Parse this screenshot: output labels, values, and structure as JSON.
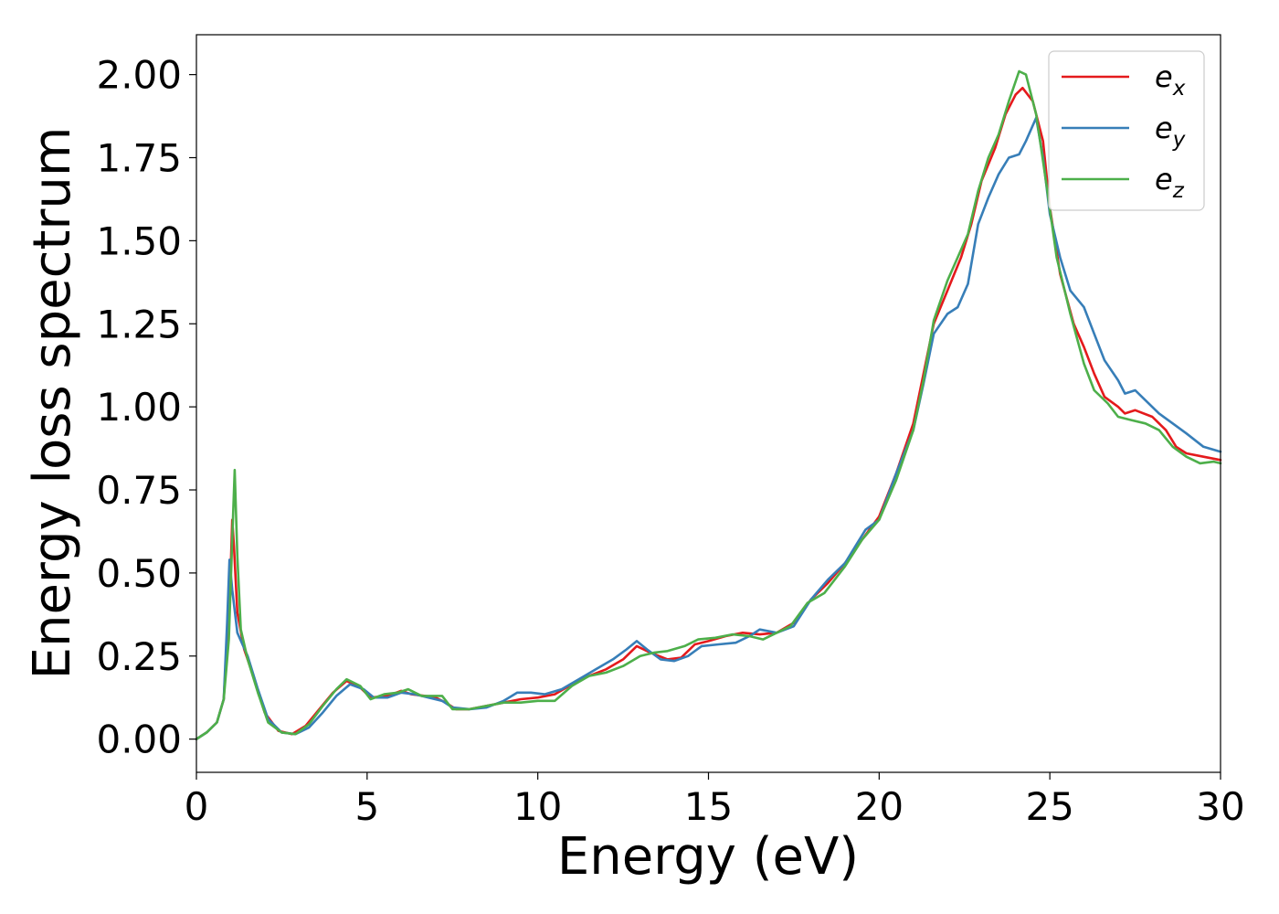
{
  "chart_data": {
    "type": "line",
    "xlabel": "Energy (eV)",
    "ylabel": "Energy loss spectrum",
    "xlim": [
      0,
      30
    ],
    "ylim": [
      -0.1,
      2.12
    ],
    "xticks": [
      0,
      5,
      10,
      15,
      20,
      25,
      30
    ],
    "xtick_labels": [
      "0",
      "5",
      "10",
      "15",
      "20",
      "25",
      "30"
    ],
    "yticks": [
      0,
      0.25,
      0.5,
      0.75,
      1.0,
      1.25,
      1.5,
      1.75,
      2.0
    ],
    "ytick_labels": [
      "0.00",
      "0.25",
      "0.50",
      "0.75",
      "1.00",
      "1.25",
      "1.50",
      "1.75",
      "2.00"
    ],
    "grid": false,
    "legend_position": "top-right",
    "series": [
      {
        "name": "e_x",
        "label_base": "e",
        "label_sub": "x",
        "color": "#e41a1c",
        "points": [
          [
            0,
            0
          ],
          [
            0.3,
            0.02
          ],
          [
            0.6,
            0.05
          ],
          [
            0.8,
            0.12
          ],
          [
            0.9,
            0.3
          ],
          [
            1.0,
            0.5
          ],
          [
            1.05,
            0.66
          ],
          [
            1.1,
            0.58
          ],
          [
            1.2,
            0.38
          ],
          [
            1.4,
            0.27
          ],
          [
            1.7,
            0.18
          ],
          [
            2.0,
            0.08
          ],
          [
            2.4,
            0.025
          ],
          [
            2.8,
            0.015
          ],
          [
            3.2,
            0.04
          ],
          [
            3.6,
            0.09
          ],
          [
            4.0,
            0.14
          ],
          [
            4.4,
            0.175
          ],
          [
            4.8,
            0.155
          ],
          [
            5.1,
            0.125
          ],
          [
            5.6,
            0.13
          ],
          [
            6.0,
            0.145
          ],
          [
            6.3,
            0.135
          ],
          [
            6.7,
            0.13
          ],
          [
            7.0,
            0.125
          ],
          [
            7.3,
            0.11
          ],
          [
            7.6,
            0.09
          ],
          [
            8.0,
            0.09
          ],
          [
            8.5,
            0.1
          ],
          [
            9.0,
            0.11
          ],
          [
            9.5,
            0.12
          ],
          [
            10.0,
            0.125
          ],
          [
            10.5,
            0.135
          ],
          [
            11.0,
            0.165
          ],
          [
            11.5,
            0.19
          ],
          [
            12.0,
            0.21
          ],
          [
            12.5,
            0.24
          ],
          [
            12.9,
            0.28
          ],
          [
            13.3,
            0.26
          ],
          [
            13.8,
            0.24
          ],
          [
            14.2,
            0.245
          ],
          [
            14.6,
            0.285
          ],
          [
            15.0,
            0.295
          ],
          [
            15.5,
            0.31
          ],
          [
            16.0,
            0.32
          ],
          [
            16.5,
            0.315
          ],
          [
            17.0,
            0.32
          ],
          [
            17.5,
            0.35
          ],
          [
            18.0,
            0.42
          ],
          [
            18.5,
            0.47
          ],
          [
            19.0,
            0.53
          ],
          [
            19.5,
            0.6
          ],
          [
            20.0,
            0.67
          ],
          [
            20.5,
            0.8
          ],
          [
            21.0,
            0.95
          ],
          [
            21.3,
            1.1
          ],
          [
            21.6,
            1.25
          ],
          [
            22.0,
            1.35
          ],
          [
            22.4,
            1.45
          ],
          [
            22.7,
            1.55
          ],
          [
            23.0,
            1.68
          ],
          [
            23.4,
            1.78
          ],
          [
            23.7,
            1.88
          ],
          [
            24.0,
            1.94
          ],
          [
            24.2,
            1.96
          ],
          [
            24.5,
            1.92
          ],
          [
            24.8,
            1.8
          ],
          [
            25.0,
            1.6
          ],
          [
            25.3,
            1.4
          ],
          [
            25.7,
            1.25
          ],
          [
            26.0,
            1.18
          ],
          [
            26.3,
            1.1
          ],
          [
            26.6,
            1.03
          ],
          [
            27.0,
            1.0
          ],
          [
            27.2,
            0.98
          ],
          [
            27.5,
            0.99
          ],
          [
            28.0,
            0.97
          ],
          [
            28.4,
            0.93
          ],
          [
            28.7,
            0.88
          ],
          [
            29.0,
            0.86
          ],
          [
            29.5,
            0.85
          ],
          [
            30.0,
            0.84
          ]
        ]
      },
      {
        "name": "e_y",
        "label_base": "e",
        "label_sub": "y",
        "color": "#377eb8",
        "points": [
          [
            0,
            0
          ],
          [
            0.3,
            0.02
          ],
          [
            0.6,
            0.05
          ],
          [
            0.8,
            0.12
          ],
          [
            0.9,
            0.35
          ],
          [
            0.97,
            0.54
          ],
          [
            1.05,
            0.45
          ],
          [
            1.2,
            0.32
          ],
          [
            1.5,
            0.25
          ],
          [
            1.8,
            0.15
          ],
          [
            2.1,
            0.06
          ],
          [
            2.5,
            0.02
          ],
          [
            2.9,
            0.015
          ],
          [
            3.3,
            0.035
          ],
          [
            3.7,
            0.08
          ],
          [
            4.1,
            0.13
          ],
          [
            4.5,
            0.165
          ],
          [
            4.9,
            0.15
          ],
          [
            5.2,
            0.125
          ],
          [
            5.6,
            0.125
          ],
          [
            6.0,
            0.14
          ],
          [
            6.4,
            0.135
          ],
          [
            6.8,
            0.125
          ],
          [
            7.2,
            0.115
          ],
          [
            7.5,
            0.095
          ],
          [
            8.0,
            0.09
          ],
          [
            8.5,
            0.095
          ],
          [
            9.0,
            0.115
          ],
          [
            9.4,
            0.14
          ],
          [
            9.8,
            0.14
          ],
          [
            10.2,
            0.135
          ],
          [
            10.7,
            0.15
          ],
          [
            11.2,
            0.18
          ],
          [
            11.7,
            0.21
          ],
          [
            12.2,
            0.24
          ],
          [
            12.6,
            0.27
          ],
          [
            12.9,
            0.295
          ],
          [
            13.2,
            0.27
          ],
          [
            13.6,
            0.24
          ],
          [
            14.0,
            0.235
          ],
          [
            14.4,
            0.25
          ],
          [
            14.8,
            0.28
          ],
          [
            15.3,
            0.285
          ],
          [
            15.8,
            0.29
          ],
          [
            16.2,
            0.31
          ],
          [
            16.5,
            0.33
          ],
          [
            17.0,
            0.32
          ],
          [
            17.5,
            0.34
          ],
          [
            18.0,
            0.42
          ],
          [
            18.5,
            0.48
          ],
          [
            19.0,
            0.53
          ],
          [
            19.3,
            0.58
          ],
          [
            19.6,
            0.63
          ],
          [
            20.0,
            0.66
          ],
          [
            20.5,
            0.8
          ],
          [
            21.0,
            0.93
          ],
          [
            21.3,
            1.07
          ],
          [
            21.6,
            1.22
          ],
          [
            22.0,
            1.28
          ],
          [
            22.3,
            1.3
          ],
          [
            22.6,
            1.37
          ],
          [
            22.9,
            1.55
          ],
          [
            23.2,
            1.63
          ],
          [
            23.5,
            1.7
          ],
          [
            23.8,
            1.75
          ],
          [
            24.1,
            1.76
          ],
          [
            24.3,
            1.8
          ],
          [
            24.6,
            1.87
          ],
          [
            24.8,
            1.75
          ],
          [
            25.0,
            1.58
          ],
          [
            25.3,
            1.45
          ],
          [
            25.6,
            1.35
          ],
          [
            26.0,
            1.3
          ],
          [
            26.3,
            1.22
          ],
          [
            26.6,
            1.14
          ],
          [
            27.0,
            1.08
          ],
          [
            27.2,
            1.04
          ],
          [
            27.5,
            1.05
          ],
          [
            27.8,
            1.02
          ],
          [
            28.2,
            0.98
          ],
          [
            28.6,
            0.95
          ],
          [
            29.0,
            0.92
          ],
          [
            29.5,
            0.88
          ],
          [
            30.0,
            0.865
          ]
        ]
      },
      {
        "name": "e_z",
        "label_base": "e",
        "label_sub": "z",
        "color": "#4daf4a",
        "points": [
          [
            0,
            0
          ],
          [
            0.3,
            0.02
          ],
          [
            0.6,
            0.05
          ],
          [
            0.8,
            0.12
          ],
          [
            0.95,
            0.3
          ],
          [
            1.05,
            0.6
          ],
          [
            1.12,
            0.81
          ],
          [
            1.2,
            0.55
          ],
          [
            1.3,
            0.33
          ],
          [
            1.5,
            0.24
          ],
          [
            1.8,
            0.14
          ],
          [
            2.1,
            0.05
          ],
          [
            2.5,
            0.02
          ],
          [
            2.9,
            0.015
          ],
          [
            3.3,
            0.045
          ],
          [
            3.7,
            0.1
          ],
          [
            4.1,
            0.15
          ],
          [
            4.4,
            0.18
          ],
          [
            4.8,
            0.16
          ],
          [
            5.1,
            0.12
          ],
          [
            5.5,
            0.135
          ],
          [
            5.9,
            0.14
          ],
          [
            6.2,
            0.15
          ],
          [
            6.6,
            0.13
          ],
          [
            7.0,
            0.13
          ],
          [
            7.2,
            0.13
          ],
          [
            7.5,
            0.09
          ],
          [
            8.0,
            0.09
          ],
          [
            8.5,
            0.1
          ],
          [
            9.0,
            0.11
          ],
          [
            9.5,
            0.11
          ],
          [
            10.0,
            0.115
          ],
          [
            10.5,
            0.115
          ],
          [
            11.0,
            0.16
          ],
          [
            11.5,
            0.19
          ],
          [
            12.0,
            0.2
          ],
          [
            12.5,
            0.22
          ],
          [
            13.0,
            0.25
          ],
          [
            13.4,
            0.26
          ],
          [
            13.8,
            0.265
          ],
          [
            14.3,
            0.28
          ],
          [
            14.7,
            0.3
          ],
          [
            15.2,
            0.305
          ],
          [
            15.7,
            0.315
          ],
          [
            16.2,
            0.31
          ],
          [
            16.6,
            0.3
          ],
          [
            17.0,
            0.32
          ],
          [
            17.4,
            0.34
          ],
          [
            17.9,
            0.41
          ],
          [
            18.4,
            0.44
          ],
          [
            19.0,
            0.52
          ],
          [
            19.5,
            0.6
          ],
          [
            20.0,
            0.66
          ],
          [
            20.5,
            0.78
          ],
          [
            21.0,
            0.93
          ],
          [
            21.3,
            1.08
          ],
          [
            21.6,
            1.26
          ],
          [
            22.0,
            1.38
          ],
          [
            22.3,
            1.45
          ],
          [
            22.6,
            1.52
          ],
          [
            22.9,
            1.65
          ],
          [
            23.2,
            1.75
          ],
          [
            23.5,
            1.82
          ],
          [
            23.8,
            1.92
          ],
          [
            24.1,
            2.01
          ],
          [
            24.3,
            2.0
          ],
          [
            24.6,
            1.88
          ],
          [
            24.9,
            1.67
          ],
          [
            25.2,
            1.45
          ],
          [
            25.6,
            1.28
          ],
          [
            26.0,
            1.13
          ],
          [
            26.3,
            1.05
          ],
          [
            26.7,
            1.01
          ],
          [
            27.0,
            0.97
          ],
          [
            27.4,
            0.96
          ],
          [
            27.8,
            0.95
          ],
          [
            28.2,
            0.93
          ],
          [
            28.6,
            0.88
          ],
          [
            29.0,
            0.85
          ],
          [
            29.4,
            0.83
          ],
          [
            29.8,
            0.835
          ],
          [
            30.0,
            0.83
          ]
        ]
      }
    ]
  }
}
